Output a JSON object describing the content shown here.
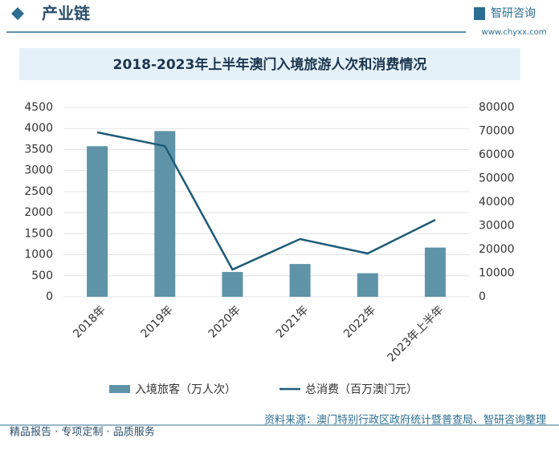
{
  "header": {
    "title": "产业链",
    "brand": "智研咨询",
    "url": "www.chyxx.com"
  },
  "chart_data": {
    "type": "bar",
    "title": "2018-2023年上半年澳门入境旅游人次和消费情况",
    "categories": [
      "2018年",
      "2019年",
      "2020年",
      "2021年",
      "2022年",
      "2023年上半年"
    ],
    "series": [
      {
        "name": "入境旅客（万人次）",
        "type": "bar",
        "color": "#5f93a8",
        "values": [
          3580,
          3940,
          590,
          780,
          560,
          1170
        ]
      },
      {
        "name": "总消费（百万澳门元）",
        "type": "line",
        "axis": "y2",
        "color": "#1d5b78",
        "values": [
          69500,
          63700,
          11500,
          24400,
          18300,
          32500
        ]
      }
    ],
    "ylim": [
      0,
      4500
    ],
    "yticks": [
      0,
      500,
      1000,
      1500,
      2000,
      2500,
      3000,
      3500,
      4000,
      4500
    ],
    "y2lim": [
      0,
      80000
    ],
    "y2ticks": [
      0,
      10000,
      20000,
      30000,
      40000,
      50000,
      60000,
      70000,
      80000
    ],
    "grid": true
  },
  "source": "资料来源：澳门特别行政区政府统计暨普查局、智研咨询整理",
  "footer": "精品报告 · 专项定制 · 品质服务"
}
